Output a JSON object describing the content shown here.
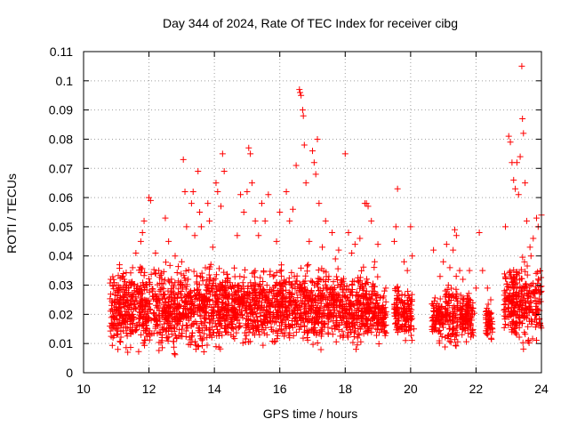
{
  "chart_data": {
    "type": "scatter",
    "title": "Day 344 of 2024, Rate Of TEC Index for receiver cibg",
    "xlabel": "GPS time / hours",
    "ylabel": "ROTI / TECUs",
    "xlim": [
      10,
      24
    ],
    "ylim": [
      0,
      0.11
    ],
    "xticks": [
      "10",
      "12",
      "14",
      "16",
      "18",
      "20",
      "22",
      "24"
    ],
    "yticks": [
      "0",
      "0.01",
      "0.02",
      "0.03",
      "0.04",
      "0.05",
      "0.06",
      "0.07",
      "0.08",
      "0.09",
      "0.1",
      "0.11"
    ],
    "grid": true,
    "marker": "+",
    "color": "#ff0000",
    "series": [
      {
        "name": "ROTI",
        "points": [
          [
            10.85,
            0.017
          ],
          [
            10.9,
            0.012
          ],
          [
            10.95,
            0.024
          ],
          [
            11.0,
            0.03
          ],
          [
            11.05,
            0.008
          ],
          [
            11.1,
            0.037
          ],
          [
            11.15,
            0.02
          ],
          [
            11.2,
            0.033
          ],
          [
            11.3,
            0.018
          ],
          [
            11.35,
            0.007
          ],
          [
            11.45,
            0.026
          ],
          [
            11.5,
            0.036
          ],
          [
            11.6,
            0.041
          ],
          [
            11.7,
            0.021
          ],
          [
            11.75,
            0.045
          ],
          [
            11.8,
            0.048
          ],
          [
            11.85,
            0.052
          ],
          [
            11.95,
            0.015
          ],
          [
            12.0,
            0.06
          ],
          [
            12.05,
            0.059
          ],
          [
            12.1,
            0.028
          ],
          [
            12.2,
            0.041
          ],
          [
            12.3,
            0.035
          ],
          [
            12.4,
            0.011
          ],
          [
            12.5,
            0.053
          ],
          [
            12.6,
            0.045
          ],
          [
            12.7,
            0.02
          ],
          [
            12.8,
            0.04
          ],
          [
            12.9,
            0.027
          ],
          [
            13.0,
            0.038
          ],
          [
            13.05,
            0.073
          ],
          [
            13.1,
            0.062
          ],
          [
            13.15,
            0.05
          ],
          [
            13.2,
            0.032
          ],
          [
            13.3,
            0.058
          ],
          [
            13.35,
            0.062
          ],
          [
            13.4,
            0.047
          ],
          [
            13.5,
            0.069
          ],
          [
            13.55,
            0.055
          ],
          [
            13.6,
            0.05
          ],
          [
            13.7,
            0.025
          ],
          [
            13.8,
            0.058
          ],
          [
            13.85,
            0.052
          ],
          [
            13.95,
            0.043
          ],
          [
            14.05,
            0.065
          ],
          [
            14.1,
            0.062
          ],
          [
            14.2,
            0.057
          ],
          [
            14.25,
            0.075
          ],
          [
            14.3,
            0.069
          ],
          [
            14.4,
            0.031
          ],
          [
            14.55,
            0.021
          ],
          [
            14.6,
            0.027
          ],
          [
            14.7,
            0.047
          ],
          [
            14.8,
            0.061
          ],
          [
            14.9,
            0.055
          ],
          [
            15.0,
            0.062
          ],
          [
            15.05,
            0.077
          ],
          [
            15.1,
            0.075
          ],
          [
            15.15,
            0.065
          ],
          [
            15.25,
            0.052
          ],
          [
            15.35,
            0.047
          ],
          [
            15.45,
            0.058
          ],
          [
            15.55,
            0.052
          ],
          [
            15.65,
            0.061
          ],
          [
            15.8,
            0.033
          ],
          [
            15.9,
            0.045
          ],
          [
            16.0,
            0.055
          ],
          [
            16.1,
            0.028
          ],
          [
            16.2,
            0.062
          ],
          [
            16.3,
            0.052
          ],
          [
            16.4,
            0.056
          ],
          [
            16.5,
            0.071
          ],
          [
            16.6,
            0.097
          ],
          [
            16.62,
            0.096
          ],
          [
            16.65,
            0.095
          ],
          [
            16.7,
            0.09
          ],
          [
            16.72,
            0.088
          ],
          [
            16.75,
            0.078
          ],
          [
            16.8,
            0.065
          ],
          [
            16.9,
            0.045
          ],
          [
            17.0,
            0.076
          ],
          [
            17.05,
            0.072
          ],
          [
            17.1,
            0.068
          ],
          [
            17.15,
            0.08
          ],
          [
            17.2,
            0.058
          ],
          [
            17.3,
            0.043
          ],
          [
            17.4,
            0.052
          ],
          [
            17.5,
            0.033
          ],
          [
            17.6,
            0.048
          ],
          [
            17.7,
            0.039
          ],
          [
            17.8,
            0.042
          ],
          [
            17.9,
            0.031
          ],
          [
            18.0,
            0.075
          ],
          [
            18.1,
            0.048
          ],
          [
            18.2,
            0.041
          ],
          [
            18.3,
            0.044
          ],
          [
            18.45,
            0.046
          ],
          [
            18.6,
            0.058
          ],
          [
            18.65,
            0.058
          ],
          [
            18.7,
            0.057
          ],
          [
            18.8,
            0.052
          ],
          [
            18.9,
            0.038
          ],
          [
            19.0,
            0.044
          ],
          [
            19.1,
            0.015
          ],
          [
            19.2,
            0.028
          ],
          [
            19.5,
            0.045
          ],
          [
            19.55,
            0.05
          ],
          [
            19.6,
            0.063
          ],
          [
            19.65,
            0.025
          ],
          [
            19.8,
            0.038
          ],
          [
            19.9,
            0.035
          ],
          [
            20.0,
            0.05
          ],
          [
            20.05,
            0.04
          ],
          [
            20.1,
            0.015
          ],
          [
            20.7,
            0.042
          ],
          [
            20.8,
            0.018
          ],
          [
            20.9,
            0.033
          ],
          [
            21.0,
            0.038
          ],
          [
            21.1,
            0.044
          ],
          [
            21.2,
            0.036
          ],
          [
            21.3,
            0.042
          ],
          [
            21.35,
            0.049
          ],
          [
            21.4,
            0.047
          ],
          [
            21.5,
            0.035
          ],
          [
            21.6,
            0.032
          ],
          [
            21.7,
            0.023
          ],
          [
            21.8,
            0.035
          ],
          [
            22.0,
            0.029
          ],
          [
            22.1,
            0.048
          ],
          [
            22.2,
            0.035
          ],
          [
            22.35,
            0.029
          ],
          [
            22.45,
            0.025
          ],
          [
            22.5,
            0.015
          ],
          [
            22.9,
            0.05
          ],
          [
            23.0,
            0.081
          ],
          [
            23.05,
            0.079
          ],
          [
            23.1,
            0.072
          ],
          [
            23.15,
            0.066
          ],
          [
            23.2,
            0.063
          ],
          [
            23.25,
            0.072
          ],
          [
            23.3,
            0.061
          ],
          [
            23.35,
            0.074
          ],
          [
            23.4,
            0.105
          ],
          [
            23.42,
            0.087
          ],
          [
            23.45,
            0.082
          ],
          [
            23.5,
            0.065
          ],
          [
            23.55,
            0.052
          ],
          [
            23.65,
            0.043
          ],
          [
            23.75,
            0.046
          ],
          [
            23.85,
            0.053
          ],
          [
            23.9,
            0.05
          ],
          [
            24.0,
            0.054
          ]
        ],
        "dense_bands": [
          {
            "x": [
              10.8,
              14.5
            ],
            "y": [
              0.006,
              0.038
            ]
          },
          {
            "x": [
              14.5,
              19.0
            ],
            "y": [
              0.008,
              0.037
            ]
          },
          {
            "x": [
              19.0,
              19.25
            ],
            "y": [
              0.009,
              0.03
            ]
          },
          {
            "x": [
              19.5,
              19.75
            ],
            "y": [
              0.012,
              0.031
            ]
          },
          {
            "x": [
              19.75,
              20.05
            ],
            "y": [
              0.009,
              0.031
            ]
          },
          {
            "x": [
              20.65,
              21.0
            ],
            "y": [
              0.01,
              0.028
            ]
          },
          {
            "x": [
              21.05,
              21.45
            ],
            "y": [
              0.005,
              0.034
            ]
          },
          {
            "x": [
              21.5,
              21.95
            ],
            "y": [
              0.01,
              0.029
            ]
          },
          {
            "x": [
              22.3,
              22.5
            ],
            "y": [
              0.01,
              0.024
            ]
          },
          {
            "x": [
              22.85,
              24.0
            ],
            "y": [
              0.008,
              0.04
            ]
          }
        ]
      }
    ]
  }
}
